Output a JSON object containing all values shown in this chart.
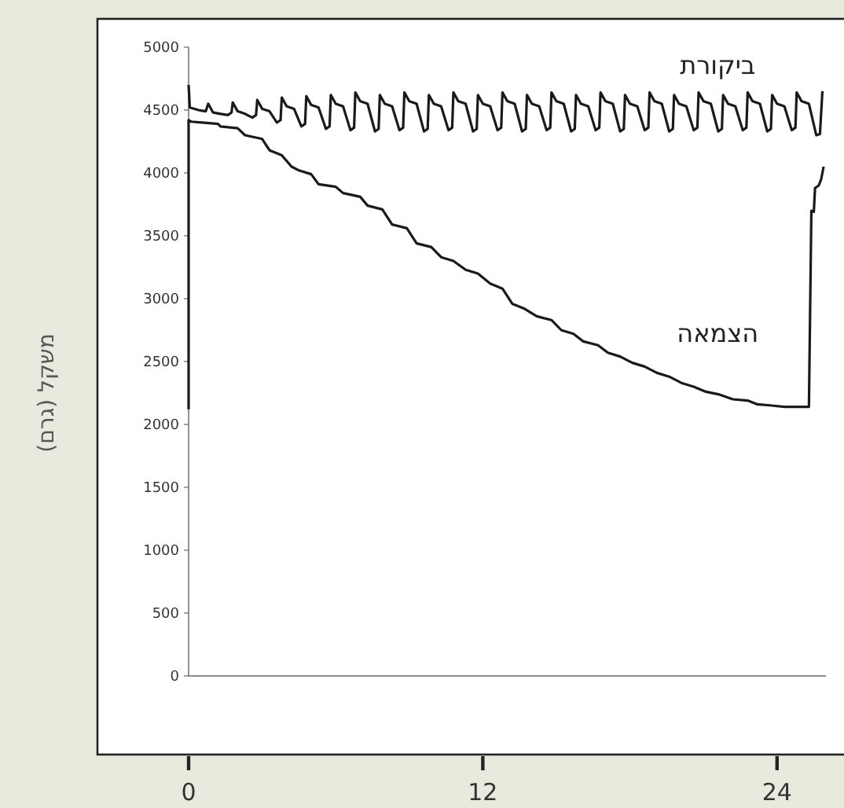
{
  "chart_data": {
    "type": "line",
    "ylabel": "משקל (גרם)",
    "xlim": [
      0,
      26
    ],
    "ylim": [
      0,
      5000
    ],
    "xticks": [
      0,
      12,
      24
    ],
    "yticks": [
      0,
      500,
      1000,
      1500,
      2000,
      2500,
      3000,
      3500,
      4000,
      4500,
      5000
    ],
    "series": [
      {
        "name": "ביקורת",
        "color": "#1a1a1a",
        "x": [
          0,
          0.05,
          0.4,
          0.7,
          0.8,
          1,
          1.3,
          1.6,
          1.75,
          1.8,
          2,
          2.3,
          2.6,
          2.75,
          2.8,
          3,
          3.3,
          3.6,
          3.75,
          3.8,
          4,
          4.3,
          4.6,
          4.75,
          4.8,
          5,
          5.3,
          5.6,
          5.75,
          5.8,
          6,
          6.3,
          6.6,
          6.75,
          6.8,
          7,
          7.3,
          7.6,
          7.75,
          7.8,
          8,
          8.3,
          8.6,
          8.75,
          8.8,
          9,
          9.3,
          9.6,
          9.75,
          9.8,
          10,
          10.3,
          10.6,
          10.75,
          10.8,
          11,
          11.3,
          11.6,
          11.75,
          11.8,
          12,
          12.3,
          12.6,
          12.75,
          12.8,
          13,
          13.3,
          13.6,
          13.75,
          13.8,
          14,
          14.3,
          14.6,
          14.75,
          14.8,
          15,
          15.3,
          15.6,
          15.75,
          15.8,
          16,
          16.3,
          16.6,
          16.75,
          16.8,
          17,
          17.3,
          17.6,
          17.75,
          17.8,
          18,
          18.3,
          18.6,
          18.75,
          18.8,
          19,
          19.3,
          19.6,
          19.75,
          19.8,
          20,
          20.3,
          20.6,
          20.75,
          20.8,
          21,
          21.3,
          21.6,
          21.75,
          21.8,
          22,
          22.3,
          22.6,
          22.75,
          22.8,
          23,
          23.3,
          23.6,
          23.75,
          23.8,
          24,
          24.3,
          24.6,
          24.75,
          24.8,
          25,
          25.3,
          25.6,
          25.75,
          25.85
        ],
        "values": [
          4700,
          4520,
          4500,
          4490,
          4550,
          4480,
          4470,
          4460,
          4480,
          4560,
          4490,
          4470,
          4440,
          4460,
          4580,
          4510,
          4490,
          4400,
          4420,
          4600,
          4530,
          4510,
          4370,
          4390,
          4610,
          4540,
          4520,
          4350,
          4370,
          4620,
          4550,
          4530,
          4340,
          4360,
          4640,
          4570,
          4550,
          4330,
          4350,
          4620,
          4550,
          4530,
          4340,
          4360,
          4640,
          4570,
          4550,
          4330,
          4350,
          4620,
          4550,
          4530,
          4340,
          4360,
          4640,
          4570,
          4550,
          4330,
          4350,
          4620,
          4550,
          4530,
          4340,
          4360,
          4640,
          4570,
          4550,
          4330,
          4350,
          4620,
          4550,
          4530,
          4340,
          4360,
          4640,
          4570,
          4550,
          4330,
          4350,
          4620,
          4550,
          4530,
          4340,
          4360,
          4640,
          4570,
          4550,
          4330,
          4350,
          4620,
          4550,
          4530,
          4340,
          4360,
          4640,
          4570,
          4550,
          4330,
          4350,
          4620,
          4550,
          4530,
          4340,
          4360,
          4640,
          4570,
          4550,
          4330,
          4350,
          4620,
          4550,
          4530,
          4340,
          4360,
          4640,
          4570,
          4550,
          4330,
          4350,
          4620,
          4550,
          4530,
          4340,
          4360,
          4640,
          4570,
          4550,
          4300,
          4310,
          4650
        ]
      },
      {
        "name": "הצמאה",
        "color": "#1a1a1a",
        "x": [
          0,
          0,
          0.1,
          1.2,
          1.3,
          2.0,
          2.3,
          3.0,
          3.3,
          3.8,
          4.2,
          4.5,
          5.0,
          5.3,
          6.0,
          6.3,
          7.0,
          7.3,
          7.9,
          8.3,
          8.9,
          9.3,
          9.9,
          10.3,
          10.8,
          11.3,
          11.8,
          12.3,
          12.8,
          13.2,
          13.7,
          14.2,
          14.8,
          15.2,
          15.7,
          16.1,
          16.7,
          17.1,
          17.6,
          18.1,
          18.6,
          19.1,
          19.6,
          20.1,
          20.6,
          21.1,
          21.6,
          22.2,
          22.8,
          23.2,
          23.8,
          24.3,
          25.3,
          25.4,
          25.5,
          25.55,
          25.7,
          25.8,
          25.9
        ],
        "values": [
          2120,
          4420,
          4408,
          4390,
          4370,
          4355,
          4300,
          4270,
          4180,
          4140,
          4050,
          4020,
          3990,
          3910,
          3890,
          3840,
          3810,
          3740,
          3710,
          3590,
          3560,
          3440,
          3410,
          3330,
          3300,
          3230,
          3200,
          3120,
          3080,
          2960,
          2920,
          2860,
          2830,
          2750,
          2720,
          2660,
          2630,
          2570,
          2540,
          2490,
          2460,
          2410,
          2380,
          2330,
          2300,
          2260,
          2240,
          2200,
          2190,
          2160,
          2150,
          2140,
          2140,
          3700,
          3690,
          3880,
          3900,
          3950,
          4050
        ]
      }
    ]
  }
}
